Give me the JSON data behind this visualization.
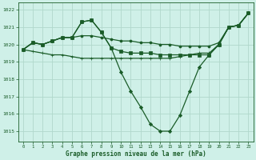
{
  "xlabel": "Graphe pression niveau de la mer (hPa)",
  "ylim": [
    1014.4,
    1022.4
  ],
  "xlim": [
    -0.5,
    23.5
  ],
  "yticks": [
    1015,
    1016,
    1017,
    1018,
    1019,
    1020,
    1021,
    1022
  ],
  "xticks": [
    0,
    1,
    2,
    3,
    4,
    5,
    6,
    7,
    8,
    9,
    10,
    11,
    12,
    13,
    14,
    15,
    16,
    17,
    18,
    19,
    20,
    21,
    22,
    23
  ],
  "bg_color": "#cff0e8",
  "grid_color": "#b0d8cc",
  "line_color": "#1a5c28",
  "line1_x": [
    0,
    1,
    2,
    3,
    4,
    5,
    6,
    7,
    8,
    9,
    10,
    11,
    12,
    13,
    14,
    15,
    16,
    17,
    18,
    19,
    20,
    21,
    22,
    23
  ],
  "line1_y": [
    1019.7,
    1020.1,
    1020.0,
    1020.2,
    1020.4,
    1020.4,
    1021.3,
    1021.4,
    1020.7,
    1019.8,
    1018.4,
    1017.3,
    1016.4,
    1015.4,
    1015.0,
    1015.0,
    1015.9,
    1017.3,
    1018.7,
    1019.4,
    1020.0,
    1021.0,
    1021.1,
    1021.8
  ],
  "line2_x": [
    0,
    1,
    2,
    3,
    4,
    5,
    6,
    7,
    8,
    9,
    10,
    11,
    12,
    13,
    14,
    15,
    16,
    17,
    18,
    19,
    20,
    21,
    22,
    23
  ],
  "line2_y": [
    1019.7,
    1020.1,
    1020.0,
    1020.2,
    1020.4,
    1020.4,
    1021.3,
    1021.4,
    1020.7,
    1019.8,
    1019.6,
    1019.5,
    1019.5,
    1019.5,
    1019.4,
    1019.4,
    1019.4,
    1019.4,
    1019.4,
    1019.4,
    1020.0,
    1021.0,
    1021.1,
    1021.8
  ],
  "line3_x": [
    0,
    1,
    2,
    3,
    4,
    5,
    6,
    7,
    8,
    9,
    10,
    11,
    12,
    13,
    14,
    15,
    16,
    17,
    18,
    19,
    20,
    21,
    22,
    23
  ],
  "line3_y": [
    1019.7,
    1020.1,
    1020.0,
    1020.2,
    1020.4,
    1020.4,
    1020.5,
    1020.5,
    1020.4,
    1020.3,
    1020.2,
    1020.2,
    1020.1,
    1020.1,
    1020.0,
    1020.0,
    1019.9,
    1019.9,
    1019.9,
    1019.9,
    1020.1,
    1021.0,
    1021.1,
    1021.8
  ],
  "line4_x": [
    0,
    1,
    2,
    3,
    4,
    5,
    6,
    7,
    8,
    9,
    10,
    11,
    12,
    13,
    14,
    15,
    16,
    17,
    18,
    19,
    20,
    21,
    22,
    23
  ],
  "line4_y": [
    1019.7,
    1019.6,
    1019.5,
    1019.4,
    1019.4,
    1019.3,
    1019.2,
    1019.2,
    1019.2,
    1019.2,
    1019.2,
    1019.2,
    1019.2,
    1019.2,
    1019.2,
    1019.2,
    1019.3,
    1019.4,
    1019.5,
    1019.5,
    1020.0,
    1021.0,
    1021.1,
    1021.8
  ]
}
